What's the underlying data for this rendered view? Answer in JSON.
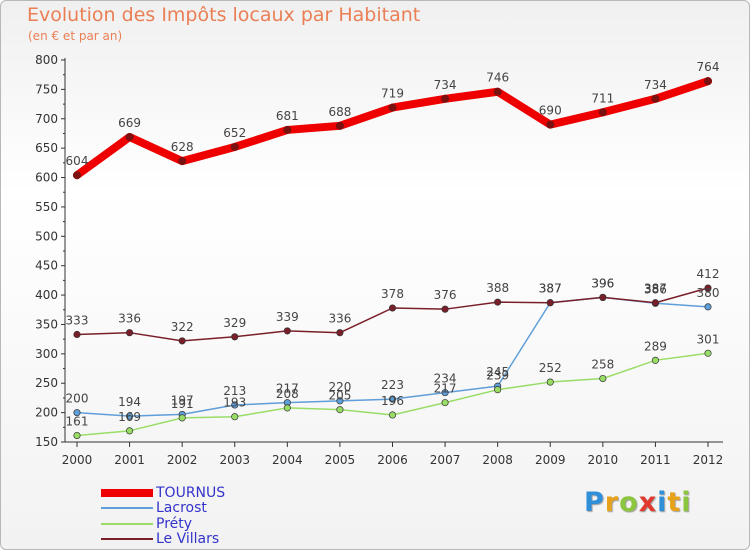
{
  "header": {
    "title": "Evolution des Impôts locaux par Habitant",
    "subtitle": "(en € et par an)"
  },
  "logo": {
    "letters": [
      "P",
      "r",
      "o",
      "x",
      "i",
      "t",
      "i"
    ],
    "colors": [
      "#2f8fd8",
      "#e8a21a",
      "#8cc63f",
      "#e03a2f",
      "#2f8fd8",
      "#e8a21a",
      "#8cc63f"
    ]
  },
  "chart_data": {
    "type": "line",
    "title": "Evolution des Impôts locaux par Habitant",
    "subtitle": "(en € et par an)",
    "x": [
      "2000",
      "2001",
      "2002",
      "2003",
      "2004",
      "2005",
      "2006",
      "2007",
      "2008",
      "2009",
      "2010",
      "2011",
      "2012"
    ],
    "ylim": [
      150,
      800
    ],
    "yticks": [
      150,
      200,
      250,
      300,
      350,
      400,
      450,
      500,
      550,
      600,
      650,
      700,
      750,
      800
    ],
    "grid": false,
    "legend_position": "bottom-left",
    "series": [
      {
        "name": "TOURNUS",
        "values": [
          604,
          669,
          628,
          652,
          681,
          688,
          719,
          734,
          746,
          690,
          711,
          734,
          764
        ],
        "labels": [
          "604",
          "669",
          "628",
          "652",
          "681",
          "688",
          "719",
          "734",
          "746",
          "690",
          "711",
          "734",
          "764"
        ],
        "color": "#ee0000",
        "style": "thick"
      },
      {
        "name": "Lacrost",
        "values": [
          200,
          194,
          197,
          213,
          217,
          220,
          223,
          234,
          245,
          387,
          396,
          386,
          380
        ],
        "labels": [
          "200",
          "194",
          "197",
          "213",
          "217",
          "220",
          "223",
          "234",
          "245",
          "387",
          "396",
          "386",
          "380"
        ],
        "color": "#5f9ed8",
        "style": "thin"
      },
      {
        "name": "Préty",
        "values": [
          161,
          169,
          191,
          193,
          208,
          205,
          196,
          217,
          239,
          252,
          258,
          289,
          301
        ],
        "labels": [
          "161",
          "169",
          "191",
          "193",
          "208",
          "205",
          "196",
          "217",
          "239",
          "252",
          "258",
          "289",
          "301"
        ],
        "color": "#99dd66",
        "style": "thin"
      },
      {
        "name": "Le Villars",
        "values": [
          333,
          336,
          322,
          329,
          339,
          336,
          378,
          376,
          388,
          387,
          396,
          387,
          412
        ],
        "labels": [
          "333",
          "336",
          "322",
          "329",
          "339",
          "336",
          "378",
          "376",
          "388",
          "387",
          "396",
          "387",
          "412"
        ],
        "color": "#7a1f2a",
        "style": "thin"
      }
    ]
  }
}
